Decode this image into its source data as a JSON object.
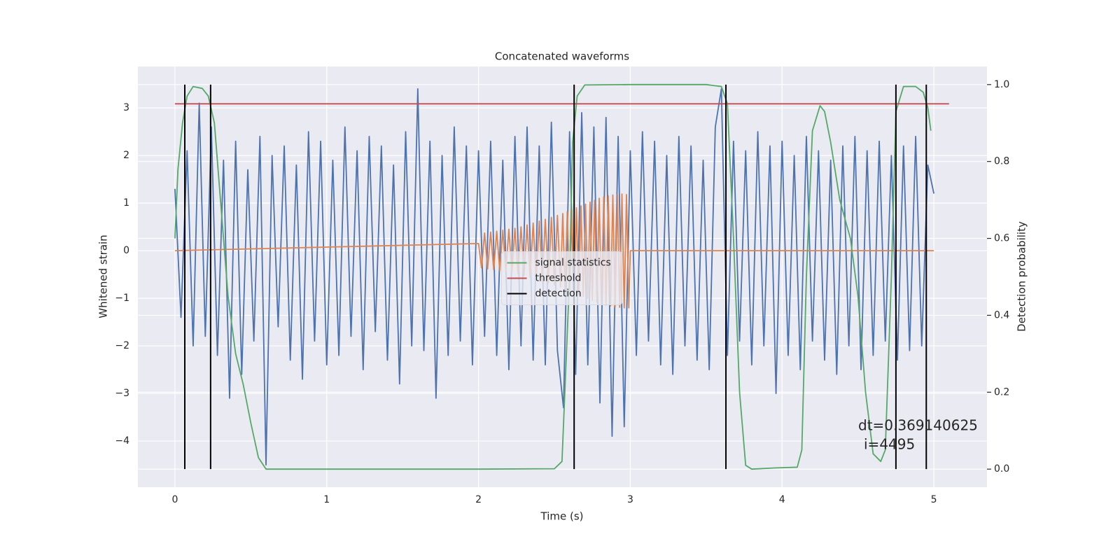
{
  "chart_data": {
    "type": "line",
    "title": "Concatenated waveforms",
    "xlabel": "Time (s)",
    "ylabel": "Whitened strain",
    "y2label": "Detection probability",
    "xlim": [
      -0.244,
      5.35
    ],
    "xticks": [
      0,
      1,
      2,
      3,
      4,
      5
    ],
    "ylim": [
      -4.97,
      3.87
    ],
    "yticks": [
      {
        "value": -4,
        "label": "−4"
      },
      {
        "value": -3,
        "label": "−3"
      },
      {
        "value": -2,
        "label": "−2"
      },
      {
        "value": -1,
        "label": "−1"
      },
      0,
      1,
      2,
      3
    ],
    "y2lim": [
      -0.047,
      1.047
    ],
    "y2ticks": [
      {
        "value": 0,
        "label": "0.0"
      },
      0.2,
      0.4,
      0.6,
      0.8,
      {
        "value": 1,
        "label": "1.0"
      }
    ],
    "grid": true,
    "legend": "center",
    "annotation": [
      "dt=0.369140625",
      "i=4495"
    ],
    "series": [
      {
        "color": "#4c72b0",
        "axis": "y",
        "x": [
          0,
          0.04,
          0.08,
          0.12,
          0.16,
          0.2,
          0.24,
          0.28,
          0.32,
          0.36,
          0.4,
          0.44,
          0.48,
          0.52,
          0.56,
          0.6,
          0.64,
          0.68,
          0.72,
          0.76,
          0.8,
          0.84,
          0.88,
          0.92,
          0.96,
          1,
          1.04,
          1.08,
          1.12,
          1.16,
          1.2,
          1.24,
          1.28,
          1.32,
          1.36,
          1.4,
          1.44,
          1.48,
          1.52,
          1.56,
          1.6,
          1.64,
          1.68,
          1.72,
          1.76,
          1.8,
          1.84,
          1.88,
          1.92,
          1.96,
          2,
          2.04,
          2.08,
          2.12,
          2.16,
          2.2,
          2.24,
          2.28,
          2.32,
          2.36,
          2.4,
          2.44,
          2.48,
          2.52,
          2.56,
          2.6,
          2.64,
          2.68,
          2.72,
          2.76,
          2.8,
          2.84,
          2.88,
          2.92,
          2.96,
          3,
          3.04,
          3.08,
          3.12,
          3.16,
          3.2,
          3.24,
          3.28,
          3.32,
          3.36,
          3.4,
          3.44,
          3.48,
          3.52,
          3.56,
          3.6,
          3.64,
          3.68,
          3.72,
          3.76,
          3.8,
          3.84,
          3.88,
          3.92,
          3.96,
          4,
          4.04,
          4.08,
          4.12,
          4.16,
          4.2,
          4.24,
          4.28,
          4.32,
          4.36,
          4.4,
          4.44,
          4.48,
          4.52,
          4.56,
          4.6,
          4.64,
          4.68,
          4.72,
          4.76,
          4.8,
          4.84,
          4.88,
          4.92,
          4.96,
          5
        ],
        "values": [
          1.3,
          -1.4,
          2.1,
          -2.0,
          3.1,
          -1.8,
          2.6,
          -2.2,
          1.9,
          -3.1,
          2.3,
          -2.6,
          1.7,
          -1.9,
          2.4,
          -4.5,
          2.0,
          -1.6,
          2.2,
          -2.3,
          1.8,
          -2.7,
          2.5,
          -1.9,
          2.3,
          -2.4,
          1.9,
          -2.2,
          2.6,
          -1.8,
          2.1,
          -2.5,
          2.4,
          -1.7,
          2.2,
          -2.3,
          1.8,
          -2.8,
          2.5,
          -2.0,
          3.4,
          -2.1,
          2.3,
          -3.1,
          2.0,
          -2.2,
          2.6,
          -1.9,
          2.2,
          -2.4,
          2.1,
          -1.8,
          2.3,
          -2.2,
          1.9,
          -2.5,
          2.4,
          -2.0,
          2.6,
          -2.3,
          2.2,
          -2.4,
          2.7,
          -2.1,
          -3.3,
          2.5,
          -2.6,
          2.9,
          -2.4,
          2.6,
          -3.2,
          2.8,
          -3.9,
          2.4,
          -3.7,
          2.1,
          -2.2,
          2.5,
          -1.9,
          2.3,
          -2.4,
          2.0,
          -2.6,
          2.4,
          -2.0,
          2.2,
          -2.3,
          1.9,
          -2.5,
          2.6,
          3.4,
          -2.2,
          2.3,
          -1.9,
          2.1,
          -2.4,
          2.5,
          -2.0,
          2.2,
          -3.0,
          2.3,
          -2.2,
          2.0,
          -2.5,
          2.4,
          -1.9,
          2.1,
          -2.3,
          1.9,
          -2.6,
          2.2,
          -2.0,
          2.4,
          -2.5,
          2.1,
          -2.2,
          2.3,
          -1.9,
          2.0,
          -2.3,
          2.2,
          -2.1,
          2.4,
          -2.0,
          1.8,
          1.2
        ]
      },
      {
        "color": "#dd8452",
        "axis": "y",
        "x": [
          0,
          2.0,
          2.02,
          2.04,
          2.06,
          2.08,
          2.1,
          2.12,
          2.14,
          2.16,
          2.18,
          2.2,
          2.22,
          2.24,
          2.26,
          2.28,
          2.3,
          2.32,
          2.34,
          2.36,
          2.38,
          2.4,
          2.42,
          2.44,
          2.46,
          2.48,
          2.5,
          2.52,
          2.54,
          2.555,
          2.57,
          2.585,
          2.6,
          2.615,
          2.63,
          2.645,
          2.66,
          2.675,
          2.69,
          2.705,
          2.72,
          2.735,
          2.75,
          2.765,
          2.78,
          2.795,
          2.81,
          2.825,
          2.84,
          2.855,
          2.87,
          2.885,
          2.9,
          2.915,
          2.93,
          2.945,
          2.96,
          2.975,
          2.99,
          3.0,
          5.0
        ],
        "values": [
          0,
          0.15,
          -0.36,
          0.37,
          -0.38,
          0.39,
          -0.4,
          0.41,
          -0.42,
          0.43,
          -0.44,
          0.45,
          -0.46,
          0.47,
          -0.48,
          0.5,
          -0.52,
          0.54,
          -0.56,
          0.58,
          -0.6,
          0.62,
          -0.64,
          0.66,
          -0.68,
          0.7,
          -0.72,
          0.74,
          -0.76,
          0.78,
          -0.8,
          0.82,
          -0.84,
          0.86,
          -0.88,
          0.9,
          -0.92,
          0.94,
          -0.96,
          0.98,
          -1.0,
          1.02,
          -1.04,
          1.06,
          -1.08,
          1.1,
          -1.12,
          1.13,
          -1.14,
          1.15,
          -1.16,
          1.17,
          -1.18,
          1.18,
          -1.19,
          1.19,
          -1.2,
          1.18,
          -1.2,
          0,
          0
        ]
      },
      {
        "name": "signal statistics",
        "color": "#55a868",
        "axis": "y2",
        "x": [
          0,
          0.02,
          0.05,
          0.08,
          0.12,
          0.18,
          0.22,
          0.26,
          0.3,
          0.35,
          0.4,
          0.45,
          0.5,
          0.55,
          0.6,
          1.0,
          2.0,
          2.5,
          2.55,
          2.6,
          2.62,
          2.65,
          2.7,
          3.0,
          3.5,
          3.6,
          3.64,
          3.68,
          3.72,
          3.76,
          3.8,
          3.95,
          4.1,
          4.13,
          4.16,
          4.2,
          4.25,
          4.28,
          4.32,
          4.38,
          4.45,
          4.5,
          4.55,
          4.6,
          4.65,
          4.68,
          4.72,
          4.75,
          4.8,
          4.88,
          4.93,
          4.96,
          4.98
        ],
        "values": [
          0.6,
          0.78,
          0.9,
          0.97,
          0.995,
          0.99,
          0.97,
          0.9,
          0.7,
          0.45,
          0.3,
          0.22,
          0.12,
          0.03,
          0.0,
          0.0,
          0.0,
          0.001,
          0.02,
          0.5,
          0.85,
          0.97,
          0.999,
          1.0,
          1.0,
          0.995,
          0.95,
          0.6,
          0.2,
          0.01,
          0.0,
          0.003,
          0.005,
          0.05,
          0.5,
          0.88,
          0.945,
          0.93,
          0.85,
          0.7,
          0.6,
          0.45,
          0.2,
          0.04,
          0.02,
          0.05,
          0.5,
          0.93,
          0.995,
          0.995,
          0.98,
          0.94,
          0.88
        ]
      },
      {
        "name": "threshold",
        "color": "#c44e52",
        "axis": "y2",
        "x": [
          0,
          5.1
        ],
        "values": [
          0.95,
          0.95
        ]
      },
      {
        "name": "detection",
        "color": "#000000",
        "axis": "y2",
        "vlines": [
          0.065,
          0.235,
          2.63,
          3.63,
          4.75,
          4.95
        ],
        "span": [
          0,
          1
        ]
      }
    ]
  }
}
